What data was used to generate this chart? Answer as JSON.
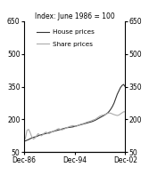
{
  "title": "Index: June 1986 = 100",
  "ylim": [
    50,
    650
  ],
  "yticks": [
    50,
    200,
    350,
    500,
    650
  ],
  "xlabels": [
    "Dec-86",
    "Dec-94",
    "Dec-02"
  ],
  "house_color": "#333333",
  "share_color": "#aaaaaa",
  "legend_labels": [
    "House prices",
    "Share prices"
  ],
  "background_color": "#ffffff",
  "line_width": 0.8,
  "house_prices": [
    100,
    102,
    105,
    108,
    112,
    115,
    118,
    120,
    122,
    125,
    128,
    130,
    132,
    134,
    136,
    138,
    140,
    142,
    144,
    146,
    148,
    150,
    152,
    154,
    156,
    158,
    160,
    162,
    163,
    164,
    165,
    166,
    168,
    170,
    172,
    174,
    176,
    178,
    180,
    182,
    184,
    186,
    188,
    190,
    193,
    196,
    200,
    204,
    208,
    212,
    216,
    220,
    225,
    230,
    238,
    248,
    260,
    275,
    295,
    315,
    330,
    345,
    355,
    360,
    350
  ],
  "share_prices": [
    100,
    115,
    150,
    155,
    140,
    120,
    110,
    115,
    125,
    135,
    130,
    125,
    130,
    138,
    142,
    138,
    135,
    140,
    145,
    148,
    150,
    155,
    158,
    155,
    152,
    155,
    158,
    162,
    165,
    168,
    170,
    172,
    170,
    168,
    172,
    175,
    178,
    180,
    182,
    185,
    188,
    190,
    192,
    195,
    198,
    200,
    205,
    210,
    215,
    218,
    220,
    222,
    225,
    228,
    230,
    228,
    225,
    222,
    220,
    218,
    220,
    225,
    230,
    235,
    235
  ],
  "n_points": 65,
  "xtick_indices": [
    0,
    32,
    64
  ]
}
